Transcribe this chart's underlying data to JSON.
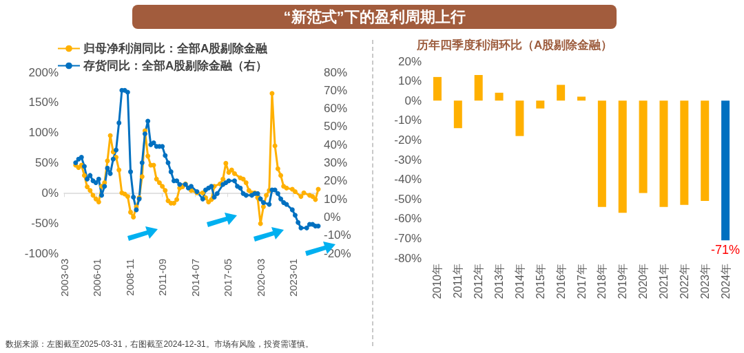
{
  "chart_data": [
    {
      "type": "line",
      "title": "“新范式”下的盈利周期上行",
      "legend": "top left",
      "marker": "circle",
      "xlim": [
        "2003-03",
        "2025-03"
      ],
      "xticks": [
        "2003-03",
        "2006-01",
        "2008-11",
        "2011-09",
        "2014-07",
        "2017-05",
        "2020-03",
        "2023-01"
      ],
      "ylim": [
        -100,
        200
      ],
      "yticks": [
        {
          "value": -100,
          "label": "-100%"
        },
        {
          "value": -50,
          "label": "-50%"
        },
        {
          "value": 0,
          "label": "0%"
        },
        {
          "value": 50,
          "label": "50%"
        },
        {
          "value": 100,
          "label": "100%"
        },
        {
          "value": 150,
          "label": "150%"
        },
        {
          "value": 200,
          "label": "200%"
        }
      ],
      "y2lim": [
        -20,
        80
      ],
      "y2ticks": [
        {
          "value": -20,
          "label": "-20%"
        },
        {
          "value": -10,
          "label": "-10%"
        },
        {
          "value": 0,
          "label": "0%"
        },
        {
          "value": 10,
          "label": "10%"
        },
        {
          "value": 20,
          "label": "20%"
        },
        {
          "value": 30,
          "label": "30%"
        },
        {
          "value": 40,
          "label": "40%"
        },
        {
          "value": 50,
          "label": "50%"
        },
        {
          "value": 60,
          "label": "60%"
        },
        {
          "value": 70,
          "label": "70%"
        },
        {
          "value": 80,
          "label": "80%"
        }
      ],
      "series": [
        {
          "name": "归母净利润同比：全部A股剔除金融",
          "color": "#ffb000",
          "x": [
            "2004-03",
            "2004-06",
            "2004-09",
            "2004-12",
            "2005-03",
            "2005-06",
            "2005-09",
            "2005-12",
            "2006-03",
            "2006-06",
            "2006-09",
            "2006-12",
            "2007-03",
            "2007-06",
            "2007-09",
            "2007-12",
            "2008-03",
            "2008-06",
            "2008-09",
            "2008-12",
            "2009-03",
            "2009-06",
            "2009-09",
            "2009-12",
            "2010-03",
            "2010-06",
            "2010-09",
            "2010-12",
            "2011-03",
            "2011-06",
            "2011-09",
            "2011-12",
            "2012-03",
            "2012-06",
            "2012-09",
            "2012-12",
            "2013-03",
            "2013-06",
            "2013-09",
            "2014-03",
            "2014-09",
            "2015-03",
            "2015-06",
            "2015-09",
            "2015-12",
            "2016-03",
            "2016-09",
            "2016-12",
            "2017-03",
            "2017-06",
            "2017-09",
            "2017-12",
            "2018-06",
            "2018-09",
            "2018-12",
            "2019-03",
            "2019-06",
            "2019-09",
            "2019-12",
            "2020-03",
            "2020-06",
            "2020-09",
            "2020-12",
            "2021-03",
            "2021-06",
            "2021-09",
            "2021-12",
            "2022-03",
            "2022-06",
            "2022-12",
            "2023-03",
            "2023-09",
            "2023-12",
            "2024-06",
            "2024-09",
            "2024-12",
            "2025-03"
          ],
          "values": [
            46,
            42,
            46,
            29,
            10,
            4,
            -4,
            -10,
            -15,
            11,
            17,
            53,
            95,
            68,
            59,
            38,
            0,
            -2,
            -6,
            -32,
            -40,
            -23,
            -8,
            27,
            103,
            61,
            46,
            46,
            23,
            17,
            11,
            4,
            -13,
            -17,
            -17,
            -11,
            8,
            10,
            15,
            4,
            0,
            0,
            -8,
            -15,
            -11,
            11,
            15,
            23,
            49,
            34,
            38,
            32,
            25,
            23,
            17,
            4,
            0,
            0,
            -8,
            -51,
            -23,
            -4,
            4,
            165,
            78,
            40,
            29,
            11,
            8,
            6,
            2,
            -6,
            0,
            -4,
            -6,
            -11,
            6
          ]
        },
        {
          "name": "存货同比：全部A股剔除金融（右）",
          "color": "#0070c0",
          "axis": "y2",
          "x": [
            "2004-03",
            "2004-06",
            "2004-09",
            "2004-12",
            "2005-03",
            "2005-06",
            "2005-09",
            "2005-12",
            "2006-03",
            "2006-06",
            "2006-09",
            "2006-12",
            "2007-03",
            "2007-06",
            "2007-09",
            "2007-12",
            "2008-03",
            "2008-06",
            "2008-09",
            "2008-12",
            "2009-03",
            "2009-06",
            "2009-09",
            "2009-12",
            "2010-03",
            "2010-06",
            "2010-09",
            "2010-12",
            "2011-03",
            "2011-06",
            "2011-09",
            "2011-12",
            "2012-03",
            "2012-06",
            "2012-09",
            "2012-12",
            "2013-03",
            "2013-09",
            "2013-12",
            "2014-03",
            "2014-09",
            "2015-03",
            "2015-06",
            "2015-09",
            "2015-12",
            "2016-03",
            "2016-06",
            "2016-12",
            "2017-03",
            "2017-06",
            "2017-12",
            "2018-03",
            "2018-06",
            "2018-09",
            "2018-12",
            "2019-06",
            "2019-09",
            "2019-12",
            "2020-03",
            "2020-06",
            "2020-12",
            "2021-03",
            "2021-06",
            "2021-09",
            "2021-12",
            "2022-03",
            "2022-06",
            "2022-12",
            "2023-03",
            "2023-06",
            "2023-09",
            "2024-03",
            "2024-06",
            "2024-09",
            "2024-12",
            "2025-03"
          ],
          "values": [
            30,
            32,
            33,
            28,
            21,
            23,
            20,
            19,
            21,
            12,
            17,
            27,
            24,
            32,
            37,
            52,
            70,
            70,
            69,
            25,
            11,
            4,
            10,
            30,
            46,
            53,
            40,
            41,
            39,
            39,
            39,
            34,
            30,
            25,
            20,
            20,
            18,
            18,
            16,
            17,
            14,
            10,
            15,
            16,
            17,
            11,
            13,
            18,
            19,
            20,
            20,
            17,
            16,
            13,
            12,
            12,
            13,
            13,
            10,
            8,
            7,
            15,
            15,
            13,
            10,
            8,
            7,
            4,
            1,
            -3,
            -6,
            -6,
            -4,
            -4,
            -5,
            -5
          ]
        }
      ],
      "annotations": [
        "数据来源：左图截至2025-03-31，右图截至2024-12-31。市场有风险，投资需谨慎。"
      ]
    },
    {
      "type": "bar",
      "title": "历年四季度利润环比（A股剔除金融）",
      "categories": [
        "2010年",
        "2011年",
        "2012年",
        "2013年",
        "2014年",
        "2015年",
        "2016年",
        "2017年",
        "2018年",
        "2019年",
        "2020年",
        "2021年",
        "2022年",
        "2023年",
        "2024年"
      ],
      "values": [
        12,
        -14,
        13,
        4,
        -18,
        -4,
        8,
        2,
        -54,
        -57,
        -47,
        -54,
        -53,
        -51,
        -71
      ],
      "colors": [
        "#ffb000",
        "#ffb000",
        "#ffb000",
        "#ffb000",
        "#ffb000",
        "#ffb000",
        "#ffb000",
        "#ffb000",
        "#ffb000",
        "#ffb000",
        "#ffb000",
        "#ffb000",
        "#ffb000",
        "#ffb000",
        "#0070c0"
      ],
      "value_labels": [
        null,
        null,
        null,
        null,
        null,
        null,
        null,
        null,
        null,
        null,
        null,
        null,
        null,
        null,
        "-71%"
      ],
      "ylim": [
        -80,
        20
      ],
      "yticks": [
        {
          "value": -80,
          "label": "-80%"
        },
        {
          "value": -70,
          "label": "-70%"
        },
        {
          "value": -60,
          "label": "-60%"
        },
        {
          "value": -50,
          "label": "-50%"
        },
        {
          "value": -40,
          "label": "-40%"
        },
        {
          "value": -30,
          "label": "-30%"
        },
        {
          "value": -20,
          "label": "-20%"
        },
        {
          "value": -10,
          "label": "-10%"
        },
        {
          "value": 0,
          "label": "0%"
        },
        {
          "value": 10,
          "label": "10%"
        },
        {
          "value": 20,
          "label": "20%"
        }
      ]
    }
  ]
}
